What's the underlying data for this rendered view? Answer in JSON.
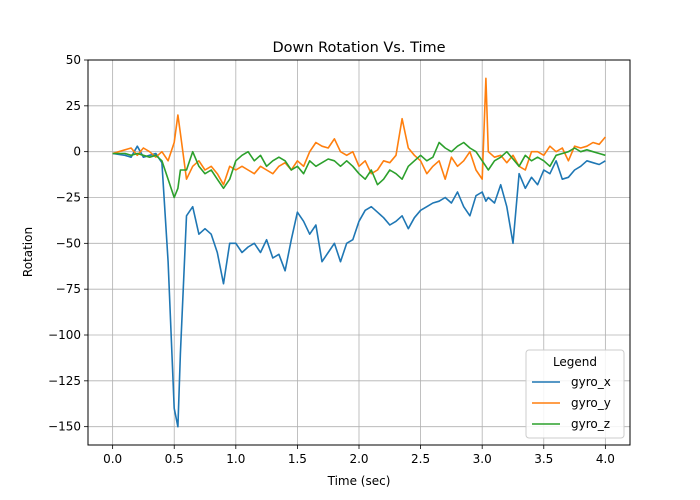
{
  "chart_data": {
    "type": "line",
    "title": "Down Rotation Vs. Time",
    "xlabel": "Time (sec)",
    "ylabel": "Rotation",
    "xlim": [
      -0.2,
      4.2
    ],
    "ylim": [
      -160,
      50
    ],
    "xticks": [
      0.0,
      0.5,
      1.0,
      1.5,
      2.0,
      2.5,
      3.0,
      3.5,
      4.0
    ],
    "xtick_labels": [
      "0.0",
      "0.5",
      "1.0",
      "1.5",
      "2.0",
      "2.5",
      "3.0",
      "3.5",
      "4.0"
    ],
    "yticks": [
      50,
      25,
      0,
      -25,
      -50,
      -75,
      -100,
      -125,
      -150
    ],
    "ytick_labels": [
      "50",
      "25",
      "0",
      "−25",
      "−50",
      "−75",
      "−100",
      "−125",
      "−150"
    ],
    "grid": true,
    "legend": {
      "title": "Legend",
      "position": "bottom-right"
    },
    "x": [
      0.0,
      0.1,
      0.15,
      0.2,
      0.25,
      0.3,
      0.35,
      0.4,
      0.45,
      0.5,
      0.53,
      0.55,
      0.6,
      0.65,
      0.7,
      0.75,
      0.8,
      0.85,
      0.9,
      0.95,
      1.0,
      1.05,
      1.1,
      1.15,
      1.2,
      1.25,
      1.3,
      1.35,
      1.4,
      1.45,
      1.5,
      1.55,
      1.6,
      1.65,
      1.7,
      1.75,
      1.8,
      1.85,
      1.9,
      1.95,
      2.0,
      2.05,
      2.1,
      2.15,
      2.2,
      2.25,
      2.3,
      2.35,
      2.4,
      2.45,
      2.5,
      2.55,
      2.6,
      2.65,
      2.7,
      2.75,
      2.8,
      2.85,
      2.9,
      2.95,
      3.0,
      3.03,
      3.05,
      3.1,
      3.15,
      3.2,
      3.25,
      3.3,
      3.35,
      3.4,
      3.45,
      3.5,
      3.55,
      3.6,
      3.65,
      3.7,
      3.75,
      3.8,
      3.85,
      3.9,
      3.95,
      4.0
    ],
    "series": [
      {
        "name": "gyro_x",
        "color": "#1f77b4",
        "values": [
          -1,
          -2,
          -3,
          3,
          -3,
          -2,
          -1,
          -6,
          -60,
          -140,
          -150,
          -110,
          -35,
          -30,
          -45,
          -42,
          -45,
          -55,
          -72,
          -50,
          -50,
          -55,
          -52,
          -50,
          -55,
          -48,
          -58,
          -56,
          -65,
          -48,
          -33,
          -38,
          -45,
          -40,
          -60,
          -55,
          -50,
          -60,
          -50,
          -48,
          -38,
          -32,
          -30,
          -33,
          -36,
          -40,
          -38,
          -35,
          -42,
          -36,
          -32,
          -30,
          -28,
          -27,
          -25,
          -28,
          -22,
          -30,
          -35,
          -24,
          -22,
          -27,
          -25,
          -28,
          -18,
          -30,
          -50,
          -12,
          -20,
          -14,
          -18,
          -10,
          -12,
          -5,
          -15,
          -14,
          -10,
          -8,
          -5,
          -6,
          -7,
          -5
        ]
      },
      {
        "name": "gyro_y",
        "color": "#ff7f0e",
        "values": [
          -1,
          1,
          2,
          -2,
          2,
          0,
          -3,
          0,
          -5,
          5,
          20,
          10,
          -15,
          -8,
          -5,
          -10,
          -8,
          -12,
          -18,
          -8,
          -10,
          -8,
          -10,
          -12,
          -8,
          -10,
          -12,
          -8,
          -6,
          -10,
          -5,
          -8,
          0,
          5,
          3,
          2,
          7,
          0,
          -2,
          0,
          -8,
          -5,
          -12,
          -10,
          -5,
          -6,
          -2,
          18,
          2,
          -2,
          -5,
          -12,
          -8,
          -5,
          -15,
          -3,
          -8,
          -5,
          0,
          -10,
          -15,
          40,
          0,
          -3,
          -2,
          -6,
          -2,
          -8,
          -10,
          0,
          0,
          -2,
          3,
          0,
          2,
          -5,
          3,
          2,
          3,
          5,
          4,
          8
        ]
      },
      {
        "name": "gyro_z",
        "color": "#2ca02c",
        "values": [
          -1,
          -1,
          -2,
          -1,
          -2,
          -3,
          -2,
          -5,
          -15,
          -25,
          -20,
          -10,
          -10,
          0,
          -8,
          -12,
          -10,
          -15,
          -20,
          -15,
          -5,
          -2,
          0,
          -5,
          -2,
          -8,
          -5,
          -3,
          -5,
          -10,
          -8,
          -12,
          -5,
          -8,
          -6,
          -4,
          -5,
          -8,
          -5,
          -8,
          -12,
          -15,
          -10,
          -18,
          -15,
          -10,
          -12,
          -15,
          -8,
          -5,
          -2,
          -5,
          -3,
          5,
          2,
          0,
          3,
          5,
          2,
          0,
          -5,
          -8,
          -10,
          -5,
          -3,
          0,
          -4,
          -8,
          -2,
          -5,
          -3,
          -5,
          -8,
          -2,
          -1,
          0,
          2,
          0,
          1,
          0,
          -1,
          -2
        ]
      }
    ]
  }
}
